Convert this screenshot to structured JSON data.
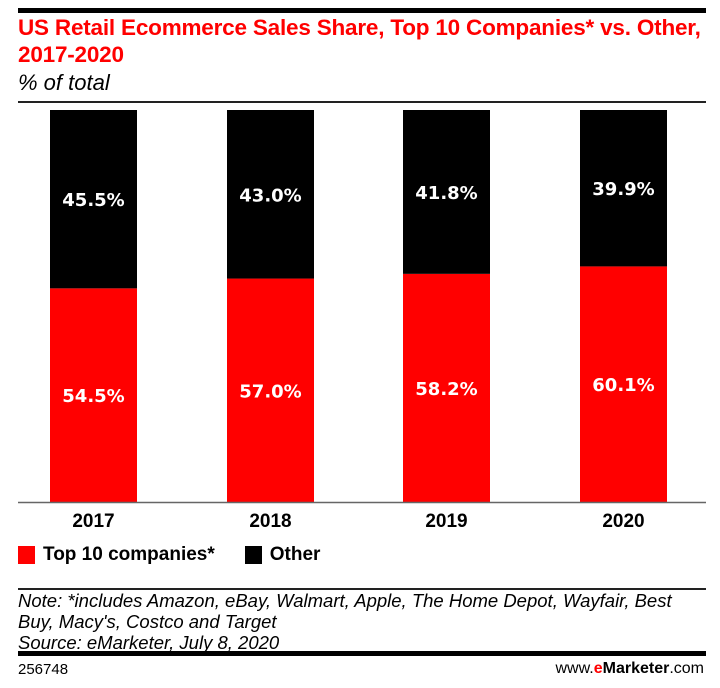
{
  "header": {
    "title": "US Retail Ecommerce Sales Share, Top 10 Companies* vs. Other, 2017-2020",
    "subtitle": "% of total"
  },
  "chart_data": {
    "type": "bar",
    "stacked": true,
    "title": "US Retail Ecommerce Sales Share, Top 10 Companies* vs. Other, 2017-2020",
    "subtitle": "% of total",
    "categories": [
      "2017",
      "2018",
      "2019",
      "2020"
    ],
    "series": [
      {
        "name": "Top 10 companies*",
        "color": "#ff0000",
        "values": [
          54.5,
          57.0,
          58.2,
          60.1
        ],
        "labels": [
          "54.5%",
          "57.0%",
          "58.2%",
          "60.1%"
        ]
      },
      {
        "name": "Other",
        "color": "#000000",
        "values": [
          45.5,
          43.0,
          41.8,
          39.9
        ],
        "labels": [
          "45.5%",
          "43.0%",
          "41.8%",
          "39.9%"
        ]
      }
    ],
    "xlabel": "",
    "ylabel": "",
    "ylim": [
      0,
      100
    ],
    "grid": false,
    "legend_position": "bottom-left"
  },
  "legend": {
    "items": [
      {
        "label": "Top 10 companies*",
        "color": "#ff0000"
      },
      {
        "label": "Other",
        "color": "#000000"
      }
    ]
  },
  "footer": {
    "note": "Note: *includes Amazon, eBay, Walmart, Apple, The Home Depot, Wayfair, Best Buy, Macy's, Costco and Target",
    "source": "Source: eMarketer, July 8, 2020",
    "chart_id": "256748",
    "brand_prefix": "www.",
    "brand_e": "e",
    "brand_name": "Marketer",
    "brand_suffix": ".com"
  }
}
